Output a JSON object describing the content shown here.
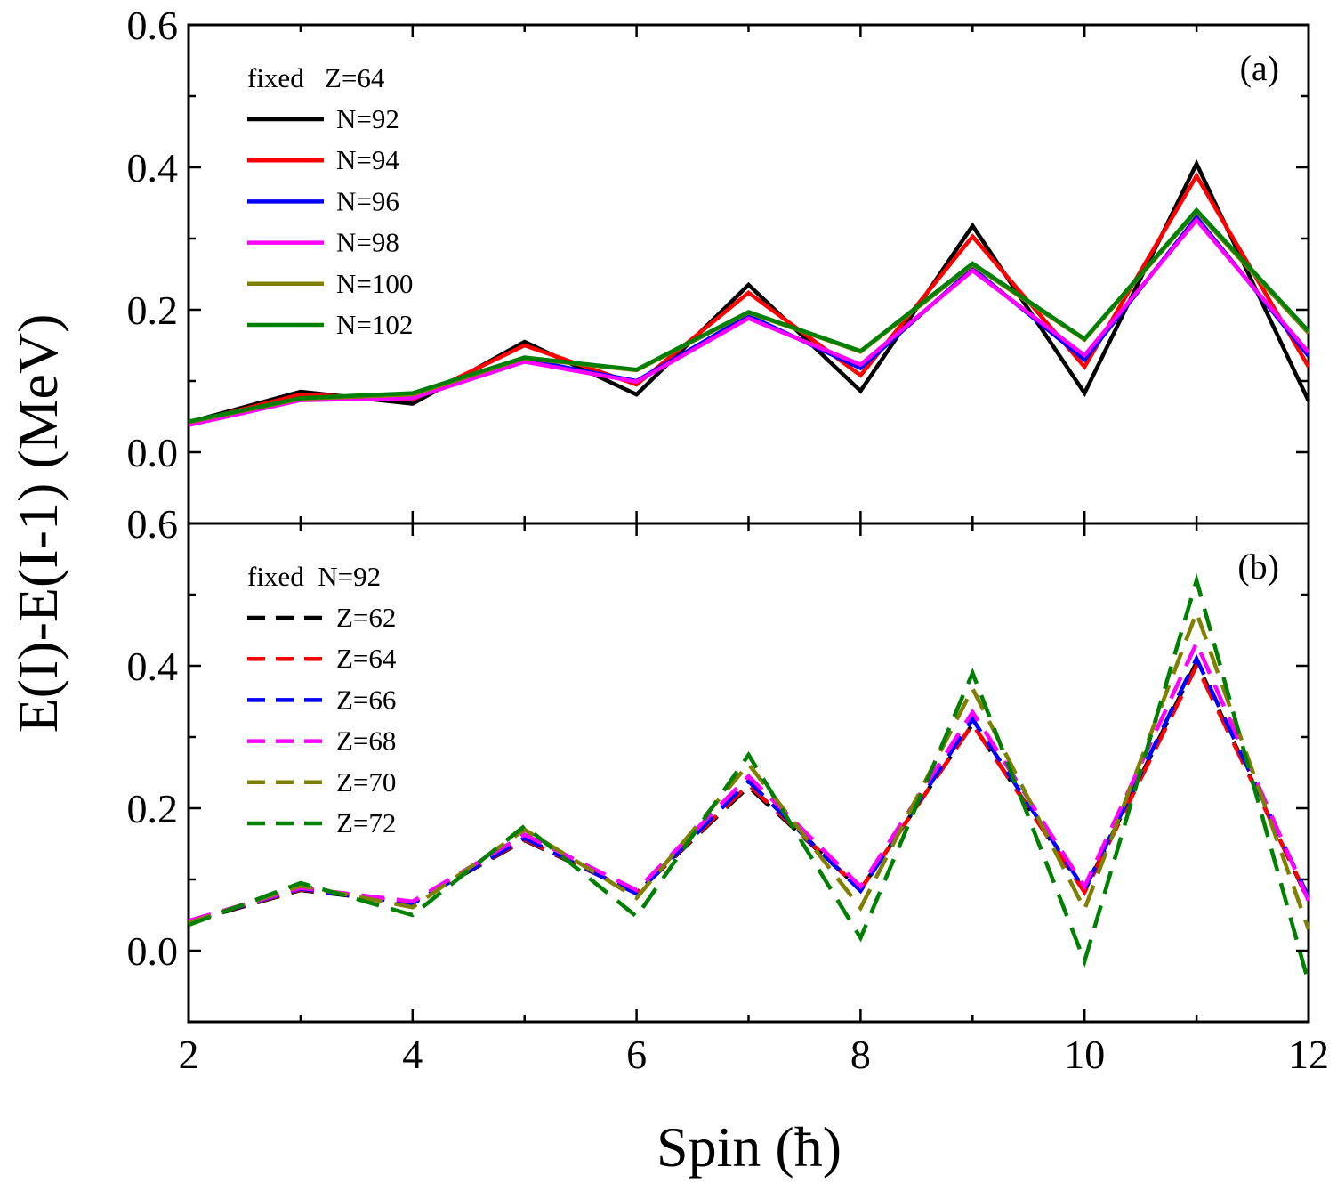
{
  "chart_data": [
    {
      "type": "line",
      "panel_label": "(a)",
      "legend_title": "fixed   Z=64",
      "legend_position": "top-left",
      "xlabel": "Spin (ħ)",
      "ylabel": "E(I)-E(I-1) (MeV)",
      "xlim": [
        2,
        12
      ],
      "ylim": [
        -0.1,
        0.6
      ],
      "xticks": [
        "2",
        "4",
        "6",
        "8",
        "10",
        "12"
      ],
      "yticks": [
        "0.0",
        "0.2",
        "0.4",
        "0.6"
      ],
      "line_style": "solid",
      "x": [
        2,
        3,
        4,
        5,
        6,
        7,
        8,
        9,
        10,
        11,
        12
      ],
      "series": [
        {
          "name": "N=92",
          "color": "#000000",
          "values": [
            0.042,
            0.085,
            0.068,
            0.155,
            0.081,
            0.235,
            0.086,
            0.318,
            0.083,
            0.405,
            0.072
          ]
        },
        {
          "name": "N=94",
          "color": "#ff0000",
          "values": [
            0.041,
            0.081,
            0.074,
            0.15,
            0.095,
            0.224,
            0.108,
            0.303,
            0.12,
            0.388,
            0.12
          ]
        },
        {
          "name": "N=96",
          "color": "#0000ff",
          "values": [
            0.04,
            0.076,
            0.078,
            0.13,
            0.1,
            0.192,
            0.118,
            0.258,
            0.13,
            0.33,
            0.135
          ]
        },
        {
          "name": "N=98",
          "color": "#ff00ff",
          "values": [
            0.038,
            0.073,
            0.076,
            0.127,
            0.099,
            0.188,
            0.123,
            0.255,
            0.136,
            0.326,
            0.14
          ]
        },
        {
          "name": "N=100",
          "color": "#808000",
          "values": [
            0.042,
            0.075,
            0.081,
            0.132,
            0.115,
            0.196,
            0.141,
            0.263,
            0.158,
            0.338,
            0.167
          ]
        },
        {
          "name": "N=102",
          "color": "#008000",
          "values": [
            0.043,
            0.076,
            0.083,
            0.133,
            0.116,
            0.197,
            0.142,
            0.265,
            0.159,
            0.34,
            0.17
          ]
        }
      ]
    },
    {
      "type": "line",
      "panel_label": "(b)",
      "legend_title": "fixed  N=92",
      "legend_position": "top-left",
      "xlabel": "Spin (ħ)",
      "ylabel": "E(I)-E(I-1) (MeV)",
      "xlim": [
        2,
        12
      ],
      "ylim": [
        -0.1,
        0.6
      ],
      "xticks": [
        "2",
        "4",
        "6",
        "8",
        "10",
        "12"
      ],
      "yticks": [
        "0.0",
        "0.2",
        "0.4",
        "0.6"
      ],
      "line_style": "dashed",
      "x": [
        2,
        3,
        4,
        5,
        6,
        7,
        8,
        9,
        10,
        11,
        12
      ],
      "series": [
        {
          "name": "Z=62",
          "color": "#000000",
          "values": [
            0.04,
            0.085,
            0.067,
            0.155,
            0.081,
            0.23,
            0.086,
            0.318,
            0.084,
            0.405,
            0.07
          ]
        },
        {
          "name": "Z=64",
          "color": "#ff0000",
          "values": [
            0.041,
            0.086,
            0.068,
            0.156,
            0.081,
            0.233,
            0.086,
            0.318,
            0.082,
            0.4,
            0.072
          ]
        },
        {
          "name": "Z=66",
          "color": "#0000ff",
          "values": [
            0.041,
            0.087,
            0.066,
            0.158,
            0.08,
            0.238,
            0.084,
            0.325,
            0.086,
            0.41,
            0.075
          ]
        },
        {
          "name": "Z=68",
          "color": "#ff00ff",
          "values": [
            0.042,
            0.088,
            0.069,
            0.163,
            0.085,
            0.245,
            0.09,
            0.335,
            0.09,
            0.432,
            0.07
          ]
        },
        {
          "name": "Z=70",
          "color": "#808000",
          "values": [
            0.039,
            0.091,
            0.061,
            0.17,
            0.074,
            0.262,
            0.06,
            0.368,
            0.058,
            0.475,
            0.03
          ]
        },
        {
          "name": "Z=72",
          "color": "#008000",
          "values": [
            0.036,
            0.095,
            0.05,
            0.175,
            0.048,
            0.275,
            0.018,
            0.39,
            -0.015,
            0.52,
            -0.045
          ]
        }
      ]
    }
  ]
}
